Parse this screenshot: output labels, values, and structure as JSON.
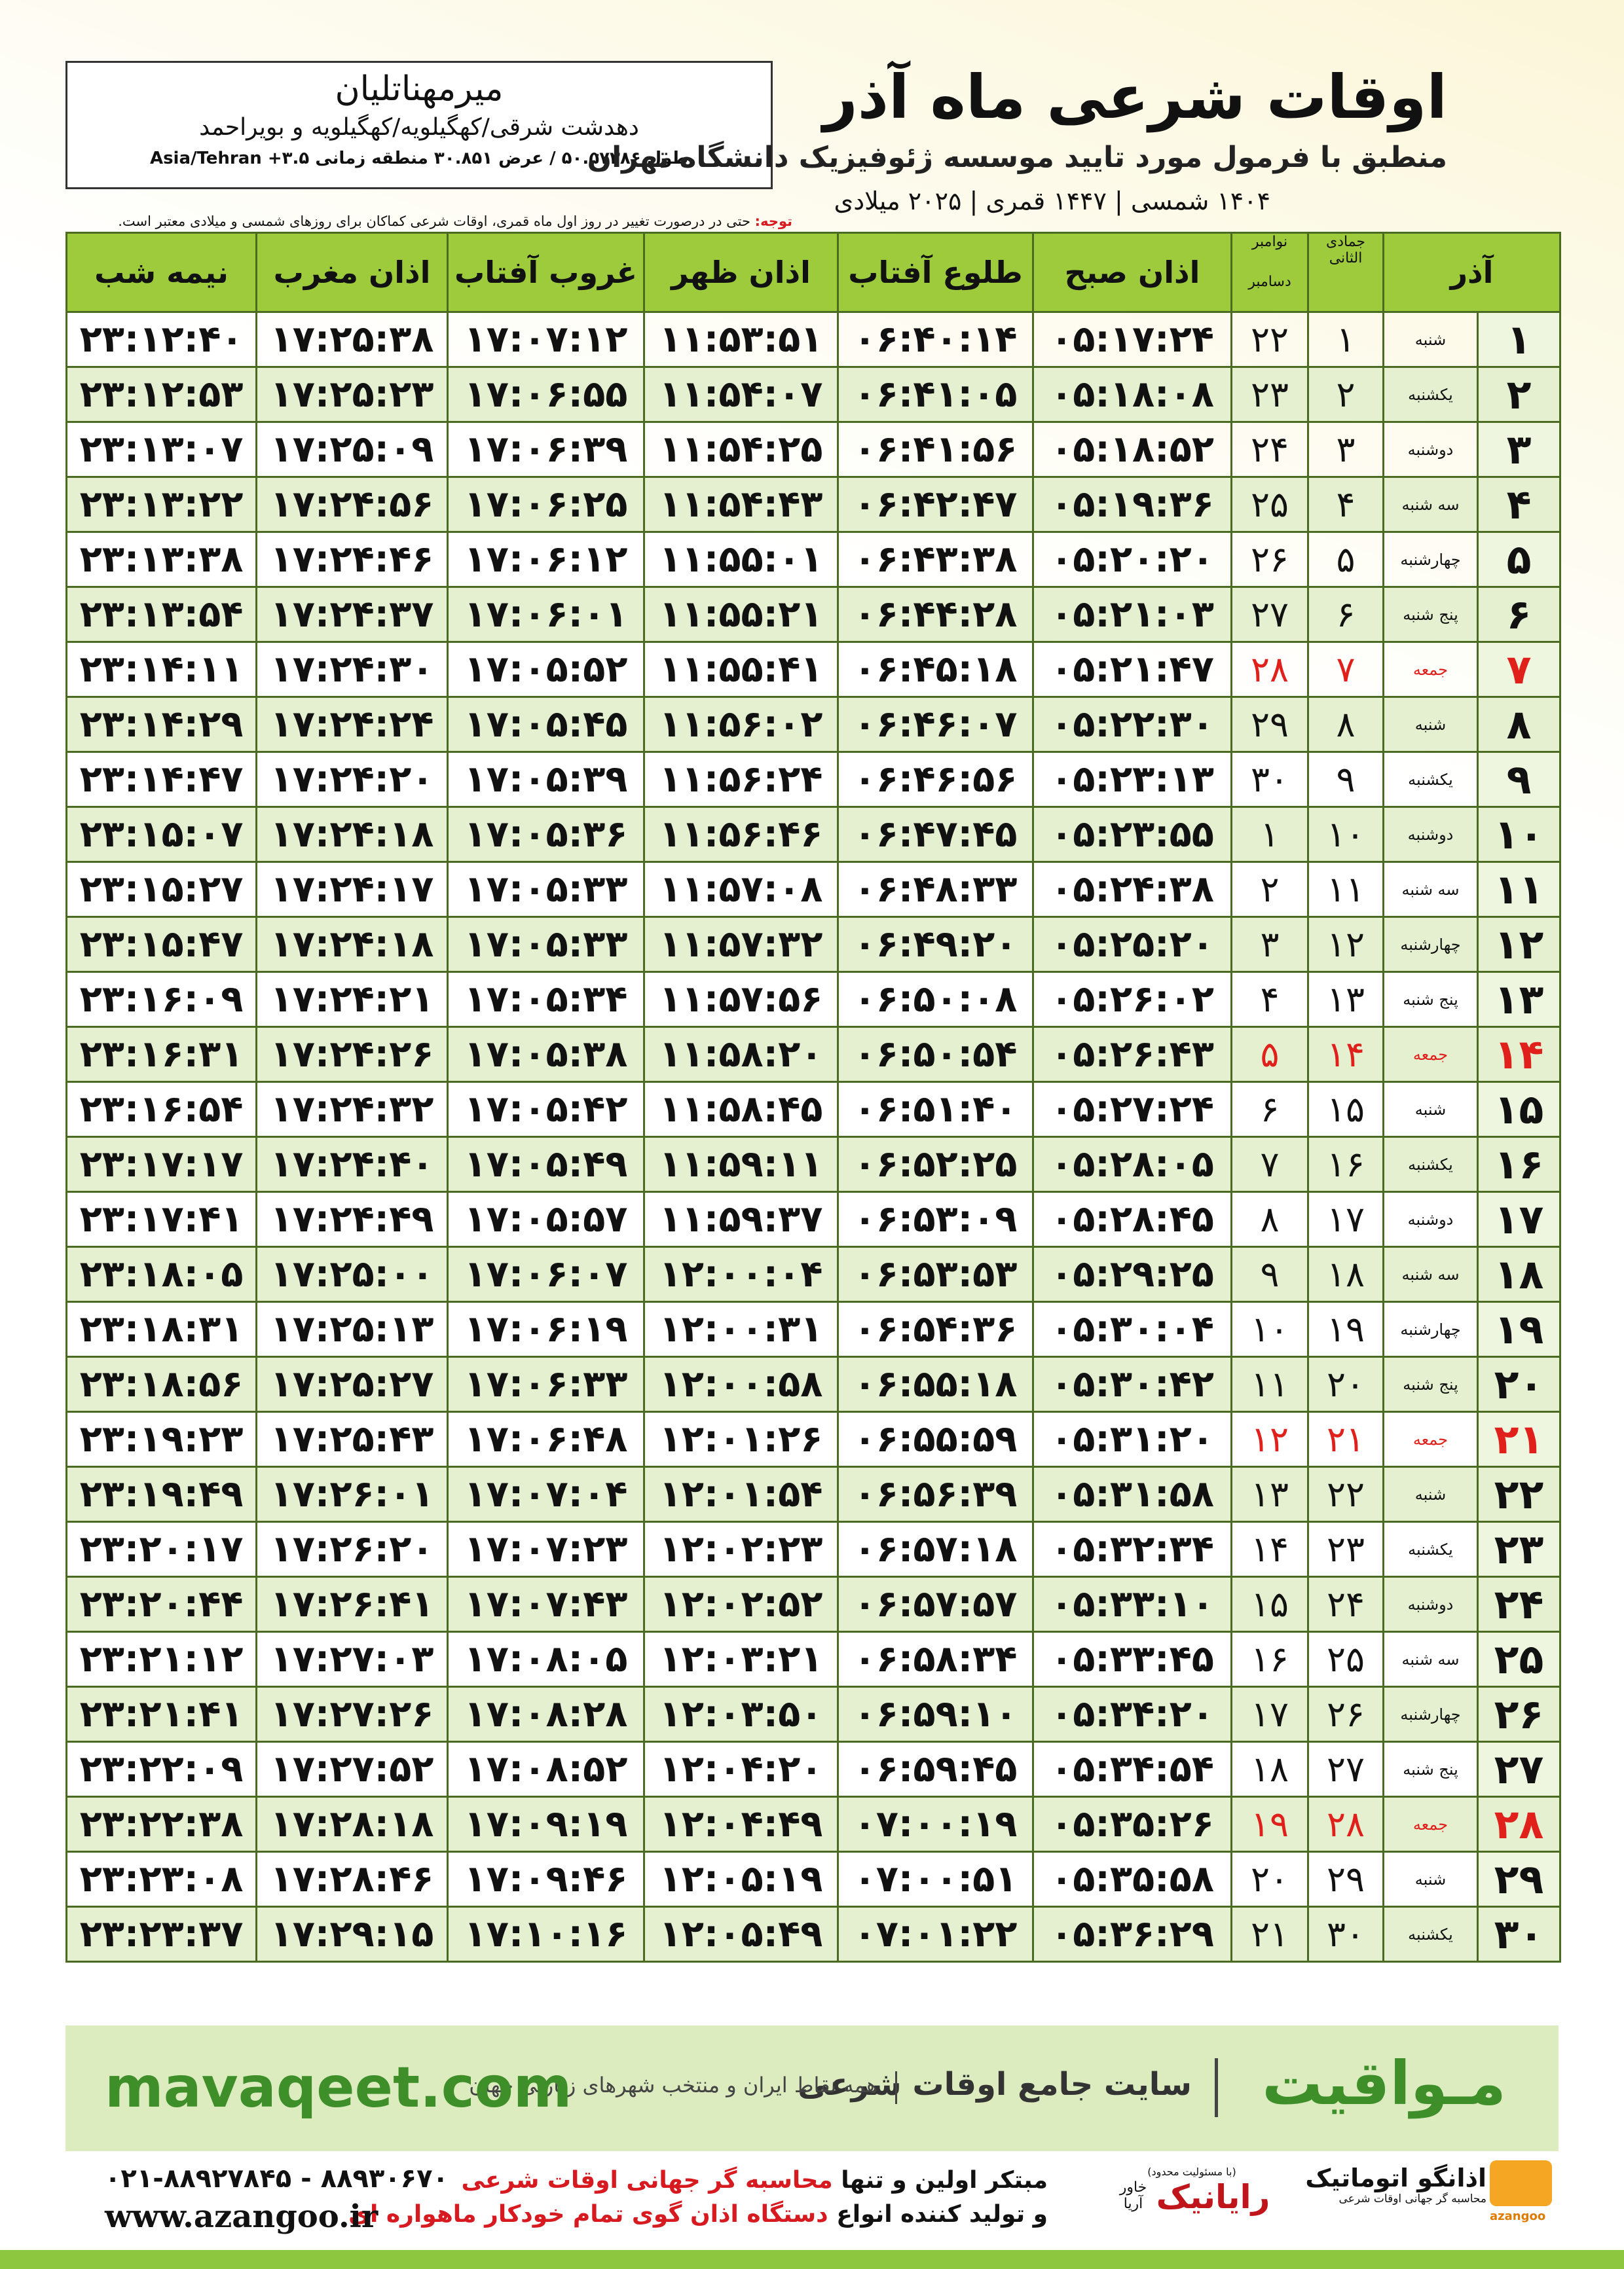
{
  "header": {
    "title": "اوقات شرعی ماه آذر",
    "subtitle": "منطبق با فرمول مورد تایید موسسه ژئوفیزیک دانشگاه تهران",
    "dates": "۱۴۰۴ شمسی | ۱۴۴۷ قمری | ۲۰۲۵ میلادی",
    "location": {
      "name": "میرمهناتلیان",
      "region": "دهدشت شرقی/کهگیلویه/کهگیلویه و بویراحمد",
      "coords": "طول ۵۰.۵۷۳۸۶ / عرض ۳۰.۸۵۱ منطقه زمانی ۳.۵+ Asia/Tehran"
    },
    "note": {
      "label": "توجه:",
      "text": "حتی در درصورت تغییر در روز اول ماه قمری، اوقات شرعی کماکان برای روزهای شمسی و میلادی معتبر است."
    }
  },
  "table": {
    "columns": [
      "آذر",
      "جمادی الثانی",
      "نوامبر",
      "دسامبر",
      "اذان صبح",
      "طلوع آفتاب",
      "اذان ظهر",
      "غروب آفتاب",
      "اذان مغرب",
      "نیمه شب"
    ],
    "rows": [
      [
        "۱",
        "شنبه",
        "۱",
        "۲۲",
        "۰۵:۱۷:۲۴",
        "۰۶:۴۰:۱۴",
        "۱۱:۵۳:۵۱",
        "۱۷:۰۷:۱۲",
        "۱۷:۲۵:۳۸",
        "۲۳:۱۲:۴۰"
      ],
      [
        "۲",
        "یکشنبه",
        "۲",
        "۲۳",
        "۰۵:۱۸:۰۸",
        "۰۶:۴۱:۰۵",
        "۱۱:۵۴:۰۷",
        "۱۷:۰۶:۵۵",
        "۱۷:۲۵:۲۳",
        "۲۳:۱۲:۵۳"
      ],
      [
        "۳",
        "دوشنبه",
        "۳",
        "۲۴",
        "۰۵:۱۸:۵۲",
        "۰۶:۴۱:۵۶",
        "۱۱:۵۴:۲۵",
        "۱۷:۰۶:۳۹",
        "۱۷:۲۵:۰۹",
        "۲۳:۱۳:۰۷"
      ],
      [
        "۴",
        "سه شنبه",
        "۴",
        "۲۵",
        "۰۵:۱۹:۳۶",
        "۰۶:۴۲:۴۷",
        "۱۱:۵۴:۴۳",
        "۱۷:۰۶:۲۵",
        "۱۷:۲۴:۵۶",
        "۲۳:۱۳:۲۲"
      ],
      [
        "۵",
        "چهارشنبه",
        "۵",
        "۲۶",
        "۰۵:۲۰:۲۰",
        "۰۶:۴۳:۳۸",
        "۱۱:۵۵:۰۱",
        "۱۷:۰۶:۱۲",
        "۱۷:۲۴:۴۶",
        "۲۳:۱۳:۳۸"
      ],
      [
        "۶",
        "پنج شنبه",
        "۶",
        "۲۷",
        "۰۵:۲۱:۰۳",
        "۰۶:۴۴:۲۸",
        "۱۱:۵۵:۲۱",
        "۱۷:۰۶:۰۱",
        "۱۷:۲۴:۳۷",
        "۲۳:۱۳:۵۴"
      ],
      [
        "۷",
        "جمعه",
        "۷",
        "۲۸",
        "۰۵:۲۱:۴۷",
        "۰۶:۴۵:۱۸",
        "۱۱:۵۵:۴۱",
        "۱۷:۰۵:۵۲",
        "۱۷:۲۴:۳۰",
        "۲۳:۱۴:۱۱"
      ],
      [
        "۸",
        "شنبه",
        "۸",
        "۲۹",
        "۰۵:۲۲:۳۰",
        "۰۶:۴۶:۰۷",
        "۱۱:۵۶:۰۲",
        "۱۷:۰۵:۴۵",
        "۱۷:۲۴:۲۴",
        "۲۳:۱۴:۲۹"
      ],
      [
        "۹",
        "یکشنبه",
        "۹",
        "۳۰",
        "۰۵:۲۳:۱۳",
        "۰۶:۴۶:۵۶",
        "۱۱:۵۶:۲۴",
        "۱۷:۰۵:۳۹",
        "۱۷:۲۴:۲۰",
        "۲۳:۱۴:۴۷"
      ],
      [
        "۱۰",
        "دوشنبه",
        "۱۰",
        "۱",
        "۰۵:۲۳:۵۵",
        "۰۶:۴۷:۴۵",
        "۱۱:۵۶:۴۶",
        "۱۷:۰۵:۳۶",
        "۱۷:۲۴:۱۸",
        "۲۳:۱۵:۰۷"
      ],
      [
        "۱۱",
        "سه شنبه",
        "۱۱",
        "۲",
        "۰۵:۲۴:۳۸",
        "۰۶:۴۸:۳۳",
        "۱۱:۵۷:۰۸",
        "۱۷:۰۵:۳۳",
        "۱۷:۲۴:۱۷",
        "۲۳:۱۵:۲۷"
      ],
      [
        "۱۲",
        "چهارشنبه",
        "۱۲",
        "۳",
        "۰۵:۲۵:۲۰",
        "۰۶:۴۹:۲۰",
        "۱۱:۵۷:۳۲",
        "۱۷:۰۵:۳۳",
        "۱۷:۲۴:۱۸",
        "۲۳:۱۵:۴۷"
      ],
      [
        "۱۳",
        "پنج شنبه",
        "۱۳",
        "۴",
        "۰۵:۲۶:۰۲",
        "۰۶:۵۰:۰۸",
        "۱۱:۵۷:۵۶",
        "۱۷:۰۵:۳۴",
        "۱۷:۲۴:۲۱",
        "۲۳:۱۶:۰۹"
      ],
      [
        "۱۴",
        "جمعه",
        "۱۴",
        "۵",
        "۰۵:۲۶:۴۳",
        "۰۶:۵۰:۵۴",
        "۱۱:۵۸:۲۰",
        "۱۷:۰۵:۳۸",
        "۱۷:۲۴:۲۶",
        "۲۳:۱۶:۳۱"
      ],
      [
        "۱۵",
        "شنبه",
        "۱۵",
        "۶",
        "۰۵:۲۷:۲۴",
        "۰۶:۵۱:۴۰",
        "۱۱:۵۸:۴۵",
        "۱۷:۰۵:۴۲",
        "۱۷:۲۴:۳۲",
        "۲۳:۱۶:۵۴"
      ],
      [
        "۱۶",
        "یکشنبه",
        "۱۶",
        "۷",
        "۰۵:۲۸:۰۵",
        "۰۶:۵۲:۲۵",
        "۱۱:۵۹:۱۱",
        "۱۷:۰۵:۴۹",
        "۱۷:۲۴:۴۰",
        "۲۳:۱۷:۱۷"
      ],
      [
        "۱۷",
        "دوشنبه",
        "۱۷",
        "۸",
        "۰۵:۲۸:۴۵",
        "۰۶:۵۳:۰۹",
        "۱۱:۵۹:۳۷",
        "۱۷:۰۵:۵۷",
        "۱۷:۲۴:۴۹",
        "۲۳:۱۷:۴۱"
      ],
      [
        "۱۸",
        "سه شنبه",
        "۱۸",
        "۹",
        "۰۵:۲۹:۲۵",
        "۰۶:۵۳:۵۳",
        "۱۲:۰۰:۰۴",
        "۱۷:۰۶:۰۷",
        "۱۷:۲۵:۰۰",
        "۲۳:۱۸:۰۵"
      ],
      [
        "۱۹",
        "چهارشنبه",
        "۱۹",
        "۱۰",
        "۰۵:۳۰:۰۴",
        "۰۶:۵۴:۳۶",
        "۱۲:۰۰:۳۱",
        "۱۷:۰۶:۱۹",
        "۱۷:۲۵:۱۳",
        "۲۳:۱۸:۳۱"
      ],
      [
        "۲۰",
        "پنج شنبه",
        "۲۰",
        "۱۱",
        "۰۵:۳۰:۴۲",
        "۰۶:۵۵:۱۸",
        "۱۲:۰۰:۵۸",
        "۱۷:۰۶:۳۳",
        "۱۷:۲۵:۲۷",
        "۲۳:۱۸:۵۶"
      ],
      [
        "۲۱",
        "جمعه",
        "۲۱",
        "۱۲",
        "۰۵:۳۱:۲۰",
        "۰۶:۵۵:۵۹",
        "۱۲:۰۱:۲۶",
        "۱۷:۰۶:۴۸",
        "۱۷:۲۵:۴۳",
        "۲۳:۱۹:۲۳"
      ],
      [
        "۲۲",
        "شنبه",
        "۲۲",
        "۱۳",
        "۰۵:۳۱:۵۸",
        "۰۶:۵۶:۳۹",
        "۱۲:۰۱:۵۴",
        "۱۷:۰۷:۰۴",
        "۱۷:۲۶:۰۱",
        "۲۳:۱۹:۴۹"
      ],
      [
        "۲۳",
        "یکشنبه",
        "۲۳",
        "۱۴",
        "۰۵:۳۲:۳۴",
        "۰۶:۵۷:۱۸",
        "۱۲:۰۲:۲۳",
        "۱۷:۰۷:۲۳",
        "۱۷:۲۶:۲۰",
        "۲۳:۲۰:۱۷"
      ],
      [
        "۲۴",
        "دوشنبه",
        "۲۴",
        "۱۵",
        "۰۵:۳۳:۱۰",
        "۰۶:۵۷:۵۷",
        "۱۲:۰۲:۵۲",
        "۱۷:۰۷:۴۳",
        "۱۷:۲۶:۴۱",
        "۲۳:۲۰:۴۴"
      ],
      [
        "۲۵",
        "سه شنبه",
        "۲۵",
        "۱۶",
        "۰۵:۳۳:۴۵",
        "۰۶:۵۸:۳۴",
        "۱۲:۰۳:۲۱",
        "۱۷:۰۸:۰۵",
        "۱۷:۲۷:۰۳",
        "۲۳:۲۱:۱۲"
      ],
      [
        "۲۶",
        "چهارشنبه",
        "۲۶",
        "۱۷",
        "۰۵:۳۴:۲۰",
        "۰۶:۵۹:۱۰",
        "۱۲:۰۳:۵۰",
        "۱۷:۰۸:۲۸",
        "۱۷:۲۷:۲۶",
        "۲۳:۲۱:۴۱"
      ],
      [
        "۲۷",
        "پنج شنبه",
        "۲۷",
        "۱۸",
        "۰۵:۳۴:۵۴",
        "۰۶:۵۹:۴۵",
        "۱۲:۰۴:۲۰",
        "۱۷:۰۸:۵۲",
        "۱۷:۲۷:۵۲",
        "۲۳:۲۲:۰۹"
      ],
      [
        "۲۸",
        "جمعه",
        "۲۸",
        "۱۹",
        "۰۵:۳۵:۲۶",
        "۰۷:۰۰:۱۹",
        "۱۲:۰۴:۴۹",
        "۱۷:۰۹:۱۹",
        "۱۷:۲۸:۱۸",
        "۲۳:۲۲:۳۸"
      ],
      [
        "۲۹",
        "شنبه",
        "۲۹",
        "۲۰",
        "۰۵:۳۵:۵۸",
        "۰۷:۰۰:۵۱",
        "۱۲:۰۵:۱۹",
        "۱۷:۰۹:۴۶",
        "۱۷:۲۸:۴۶",
        "۲۳:۲۳:۰۸"
      ],
      [
        "۳۰",
        "یکشنبه",
        "۳۰",
        "۲۱",
        "۰۵:۳۶:۲۹",
        "۰۷:۰۱:۲۲",
        "۱۲:۰۵:۴۹",
        "۱۷:۱۰:۱۶",
        "۱۷:۲۹:۱۵",
        "۲۳:۲۳:۳۷"
      ]
    ]
  },
  "banner": {
    "brand": "مـواقیت",
    "site_title": "سایت جامع اوقات شرعی",
    "site_desc": "همه نقاط ایران و منتخب شهرهای زیارتی جهان",
    "url": "mavaqeet.com"
  },
  "footer": {
    "line1_start": "مبتکر اولین و تنها",
    "line1_highlight": "محاسبه گر جهانی اوقات شرعی",
    "line2_start": "و تولید کننده انواع",
    "line2_highlight": "دستگاه اذان گوی تمام خودکار ماهواره ای",
    "phone": "۰۲۱-۸۸۹۲۷۸۴۵ - ۸۸۹۳۰۶۷۰",
    "website": "www.azangoo.ir",
    "rayanik": "رایانیک",
    "rayanik_note": "(با مسئولیت محدود)",
    "khavar": "خاور آریا",
    "azangoo_fa": "اذانگو اتوماتیک",
    "azangoo_desc": "محاسبه گر جهانی اوقات شرعی",
    "azangoo_en": "azangoo"
  }
}
